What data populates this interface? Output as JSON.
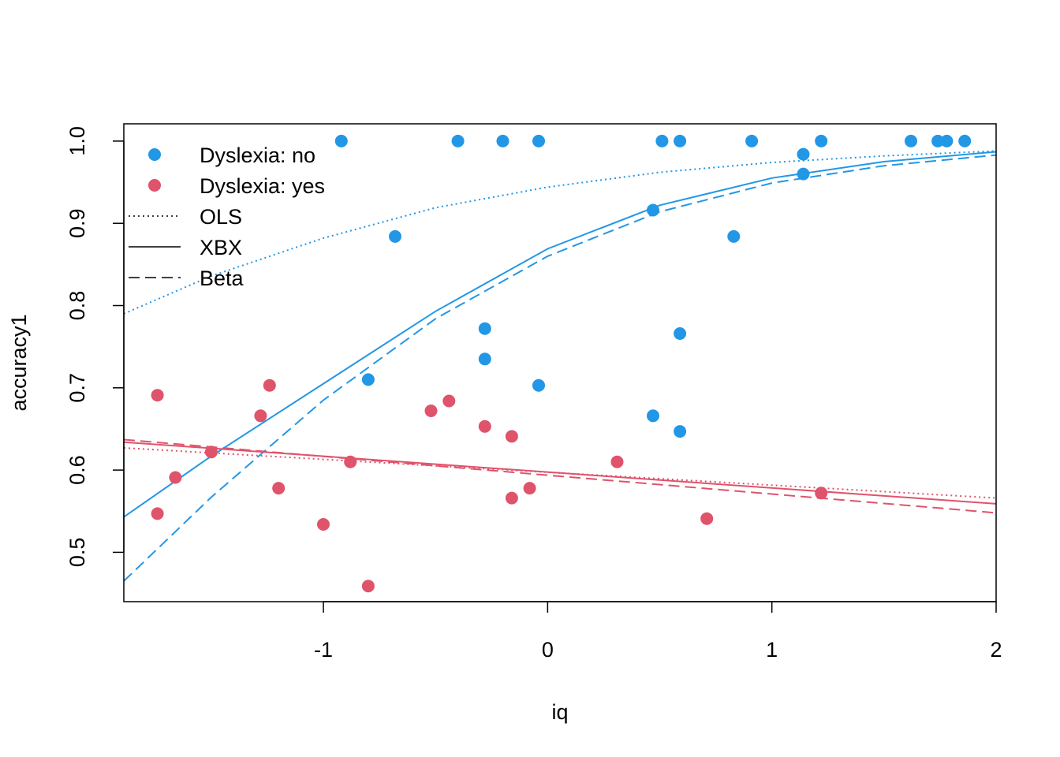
{
  "chart_data": {
    "type": "scatter",
    "title": "",
    "xlabel": "iq",
    "ylabel": "accuracy1",
    "xlim": [
      -1.89,
      2.0
    ],
    "ylim": [
      0.44,
      1.021
    ],
    "x_ticks": [
      "-1",
      "0",
      "1",
      "2"
    ],
    "y_ticks": [
      "0.5",
      "0.6",
      "0.7",
      "0.8",
      "0.9",
      "1.0"
    ],
    "grid": false,
    "legend_position": "top-left",
    "colors": {
      "no": "#2297E6",
      "yes": "#DF536B"
    },
    "legend": [
      {
        "label": "Dyslexia: no",
        "marker": "point",
        "color": "#2297E6"
      },
      {
        "label": "Dyslexia: yes",
        "marker": "point",
        "color": "#DF536B"
      },
      {
        "label": "OLS",
        "marker": "dotted"
      },
      {
        "label": "XBX",
        "marker": "solid"
      },
      {
        "label": "Beta",
        "marker": "dashed"
      }
    ],
    "series": [
      {
        "group": "no",
        "color": "#2297E6",
        "points": [
          [
            -0.92,
            1.0
          ],
          [
            -0.4,
            1.0
          ],
          [
            -0.2,
            1.0
          ],
          [
            -0.04,
            1.0
          ],
          [
            0.51,
            1.0
          ],
          [
            0.59,
            1.0
          ],
          [
            0.91,
            1.0
          ],
          [
            1.22,
            1.0
          ],
          [
            1.62,
            1.0
          ],
          [
            1.74,
            1.0
          ],
          [
            1.78,
            1.0
          ],
          [
            1.86,
            1.0
          ],
          [
            1.14,
            0.984
          ],
          [
            1.14,
            0.96
          ],
          [
            0.47,
            0.916
          ],
          [
            0.83,
            0.884
          ],
          [
            -0.68,
            0.884
          ],
          [
            -0.28,
            0.772
          ],
          [
            0.59,
            0.766
          ],
          [
            -0.28,
            0.735
          ],
          [
            -0.8,
            0.71
          ],
          [
            -0.04,
            0.703
          ],
          [
            0.47,
            0.666
          ],
          [
            0.59,
            0.647
          ]
        ]
      },
      {
        "group": "yes",
        "color": "#DF536B",
        "points": [
          [
            -1.74,
            0.691
          ],
          [
            -1.24,
            0.703
          ],
          [
            -1.28,
            0.666
          ],
          [
            -0.44,
            0.684
          ],
          [
            -0.52,
            0.672
          ],
          [
            -0.28,
            0.653
          ],
          [
            -0.16,
            0.641
          ],
          [
            -1.5,
            0.622
          ],
          [
            -0.88,
            0.61
          ],
          [
            0.31,
            0.61
          ],
          [
            -1.66,
            0.591
          ],
          [
            -1.2,
            0.578
          ],
          [
            -0.08,
            0.578
          ],
          [
            -0.16,
            0.566
          ],
          [
            1.22,
            0.572
          ],
          [
            -1.74,
            0.547
          ],
          [
            0.71,
            0.541
          ],
          [
            -1.0,
            0.534
          ],
          [
            -0.8,
            0.459
          ]
        ]
      }
    ],
    "fitted_lines": [
      {
        "group": "no",
        "model": "OLS",
        "style": "dotted",
        "color": "#2297E6",
        "x": [
          -1.89,
          -1.5,
          -1.0,
          -0.5,
          0.0,
          0.5,
          1.0,
          1.5,
          2.0
        ],
        "y": [
          0.79,
          0.836,
          0.882,
          0.919,
          0.944,
          0.962,
          0.974,
          0.982,
          0.988
        ]
      },
      {
        "group": "no",
        "model": "XBX",
        "style": "solid",
        "color": "#2297E6",
        "x": [
          -1.89,
          -1.5,
          -1.0,
          -0.5,
          0.0,
          0.5,
          1.0,
          1.5,
          2.0
        ],
        "y": [
          0.543,
          0.617,
          0.705,
          0.793,
          0.869,
          0.922,
          0.955,
          0.975,
          0.987
        ]
      },
      {
        "group": "no",
        "model": "Beta",
        "style": "dashed",
        "color": "#2297E6",
        "x": [
          -1.89,
          -1.5,
          -1.0,
          -0.5,
          0.0,
          0.5,
          1.0,
          1.5,
          2.0
        ],
        "y": [
          0.465,
          0.567,
          0.685,
          0.784,
          0.86,
          0.914,
          0.949,
          0.97,
          0.983
        ]
      },
      {
        "group": "yes",
        "model": "OLS",
        "style": "dotted",
        "color": "#DF536B",
        "x": [
          -1.89,
          2.0
        ],
        "y": [
          0.627,
          0.566
        ]
      },
      {
        "group": "yes",
        "model": "XBX",
        "style": "solid",
        "color": "#DF536B",
        "x": [
          -1.89,
          2.0
        ],
        "y": [
          0.634,
          0.559
        ]
      },
      {
        "group": "yes",
        "model": "Beta",
        "style": "dashed",
        "color": "#DF536B",
        "x": [
          -1.89,
          2.0
        ],
        "y": [
          0.637,
          0.548
        ]
      }
    ]
  }
}
